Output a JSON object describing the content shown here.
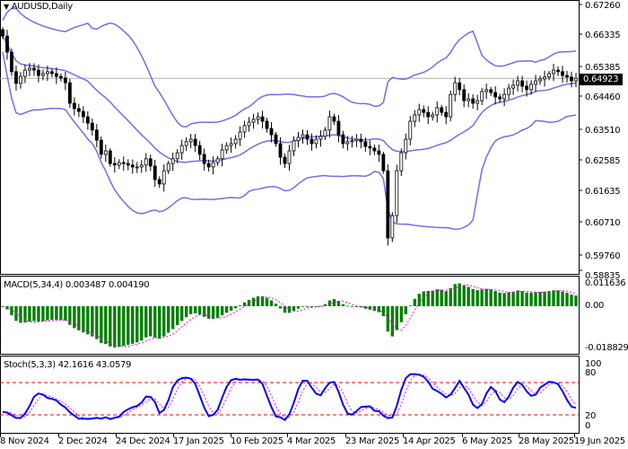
{
  "header": {
    "symbol_label": "AUDUSD,Daily",
    "dropdown_icon": "triangle-down-icon"
  },
  "price_axis": {
    "ticks": [
      "0.67260",
      "0.66335",
      "0.65385",
      "0.64460",
      "0.63510",
      "0.62585",
      "0.61635",
      "0.60710",
      "0.59760",
      "0.58835"
    ],
    "current_price": "0.64923"
  },
  "macd": {
    "label": "MACD(5,34,4) 0.003487 0.004190",
    "ticks": [
      "0.011636",
      "0.00",
      "-0.018829"
    ]
  },
  "stoch": {
    "label": "Stoch(5,3,3) 42.1616 43.0579",
    "ticks": [
      "100",
      "80",
      "20",
      "0"
    ]
  },
  "date_axis": [
    "8 Nov 2024",
    "2 Dec 2024",
    "24 Dec 2024",
    "17 Jan 2025",
    "10 Feb 2025",
    "4 Mar 2025",
    "23 Mar 2025",
    "14 Apr 2025",
    "6 May 2025",
    "28 May 2025",
    "19 Jun 2025"
  ],
  "chart_data": {
    "type": "candlestick",
    "symbol": "AUDUSD",
    "timeframe": "Daily",
    "ylim": [
      0.58835,
      0.6726
    ],
    "indicators": [
      "Bollinger Bands",
      "MACD(5,34,4)",
      "Stoch(5,3,3)"
    ],
    "colors": {
      "bands": "#7B68EE",
      "macd_hist": "#008000",
      "macd_signal": "#FF00FF",
      "stoch_main": "#0000FF",
      "stoch_signal": "#FF00FF",
      "stoch_levels": "#FF0000",
      "bull": "#FFFFFF",
      "bear": "#000000"
    },
    "stoch_levels": [
      20,
      80
    ],
    "close": [
      0.6626,
      0.6575,
      0.6513,
      0.6476,
      0.6498,
      0.6518,
      0.6524,
      0.6518,
      0.6501,
      0.6507,
      0.6513,
      0.6507,
      0.6498,
      0.6493,
      0.6478,
      0.6413,
      0.6396,
      0.6387,
      0.637,
      0.635,
      0.6328,
      0.6296,
      0.6251,
      0.6262,
      0.6222,
      0.6217,
      0.6225,
      0.6222,
      0.6217,
      0.6211,
      0.6211,
      0.6217,
      0.6237,
      0.6214,
      0.6171,
      0.6157,
      0.6199,
      0.6222,
      0.6237,
      0.6256,
      0.6279,
      0.6291,
      0.6299,
      0.6279,
      0.6251,
      0.6222,
      0.6211,
      0.6225,
      0.6237,
      0.6265,
      0.6279,
      0.6285,
      0.6299,
      0.6322,
      0.6342,
      0.6353,
      0.6362,
      0.637,
      0.6356,
      0.6333,
      0.6313,
      0.6285,
      0.6242,
      0.6222,
      0.6262,
      0.6294,
      0.6305,
      0.6313,
      0.6299,
      0.6285,
      0.6299,
      0.6308,
      0.6328,
      0.637,
      0.6356,
      0.6313,
      0.6285,
      0.6291,
      0.6294,
      0.6299,
      0.6291,
      0.6276,
      0.6271,
      0.6262,
      0.6251,
      0.6199,
      0.5986,
      0.6057,
      0.6199,
      0.6256,
      0.6299,
      0.6356,
      0.6376,
      0.6393,
      0.6384,
      0.637,
      0.6376,
      0.6399,
      0.6384,
      0.637,
      0.6441,
      0.6478,
      0.6456,
      0.6421,
      0.6427,
      0.6413,
      0.6421,
      0.645,
      0.6456,
      0.6447,
      0.6433,
      0.6427,
      0.6441,
      0.6461,
      0.647,
      0.6484,
      0.6467,
      0.6456,
      0.6473,
      0.6484,
      0.649,
      0.6496,
      0.6507,
      0.6518,
      0.6513,
      0.6501,
      0.6496,
      0.6484,
      0.6492
    ]
  }
}
